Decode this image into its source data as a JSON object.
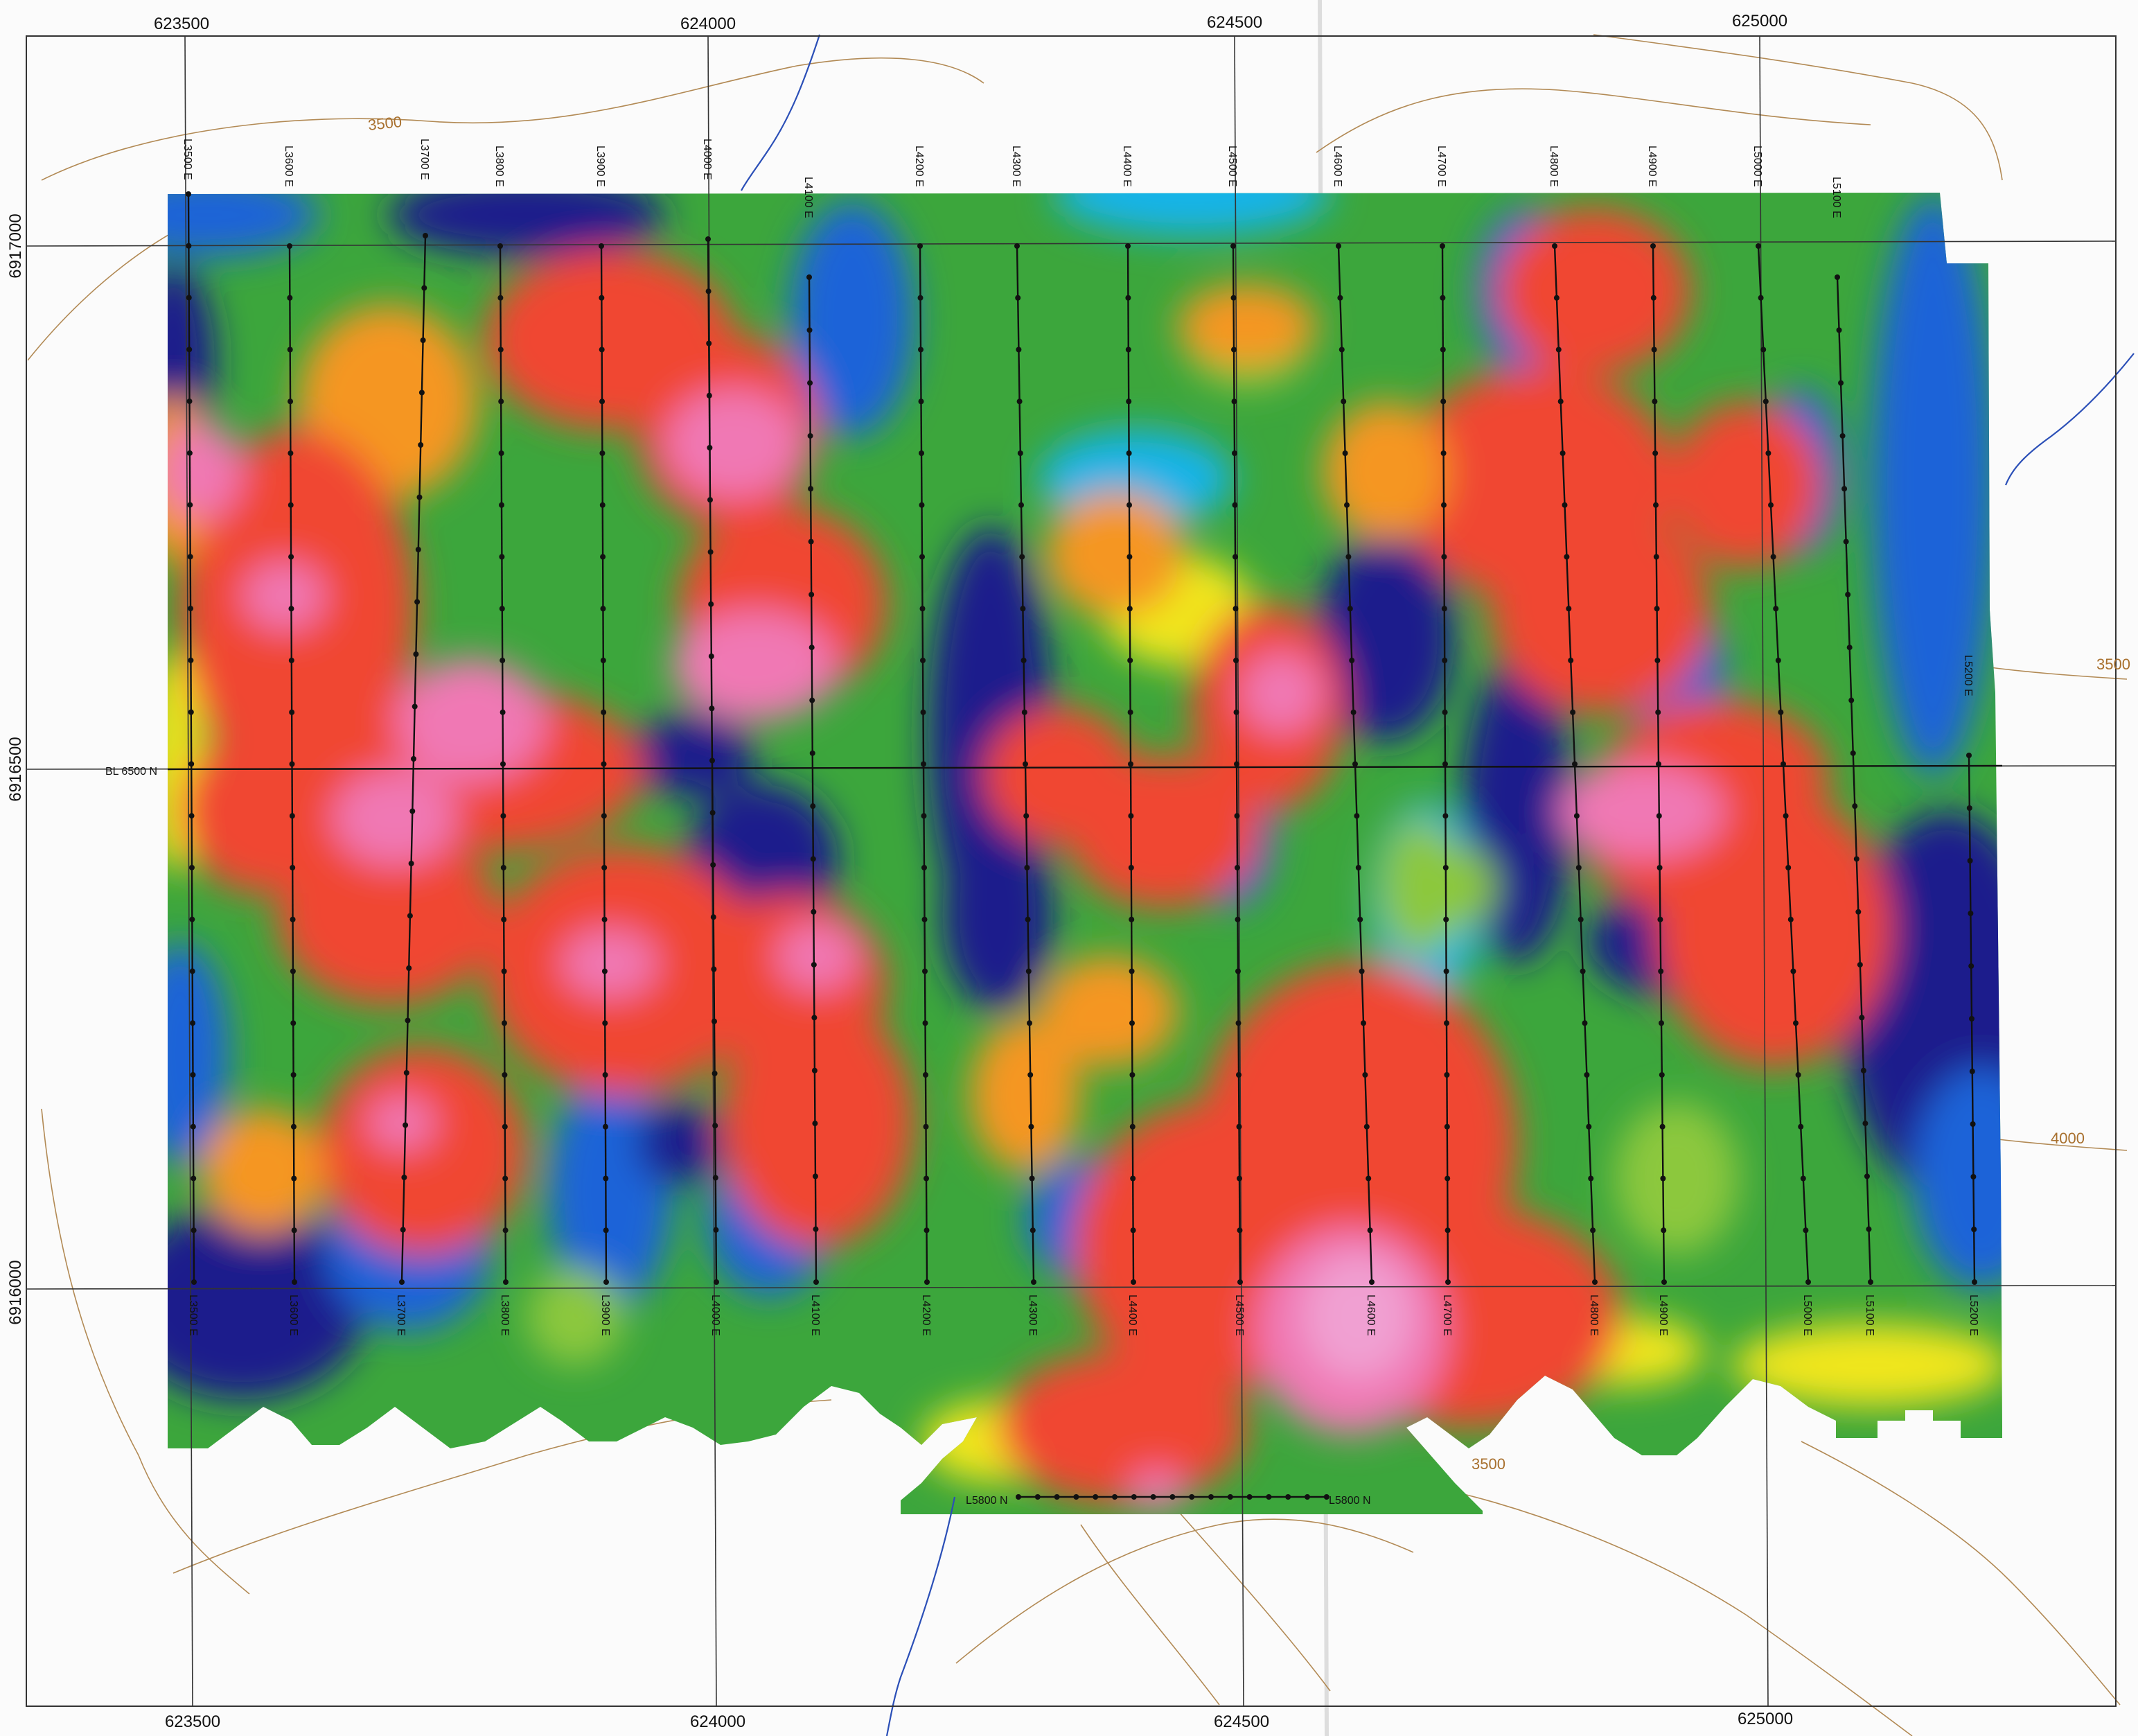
{
  "map": {
    "colors": {
      "scale": [
        "#1a1a8c",
        "#1e64d8",
        "#19b4e8",
        "#3ca63c",
        "#8cc83c",
        "#f0e61e",
        "#f59623",
        "#f04632",
        "#ee3c5a",
        "#f078b4",
        "#f0a0d2"
      ],
      "grid": "#333333",
      "contour": "#b28a55",
      "creek": "#2b4fb7"
    },
    "easting_top": [
      "623500",
      "624000",
      "624500",
      "625000"
    ],
    "easting_bottom": [
      "623500",
      "624000",
      "624500",
      "625000"
    ],
    "northing_left": [
      "6917000",
      "6916500",
      "6916000"
    ],
    "contour_labels": [
      "3500",
      "3500",
      "3500",
      "4000"
    ],
    "baseline_label": "BL 6500 N",
    "tie_line_labels": [
      "L5800 N",
      "L5800 N"
    ],
    "survey_lines_top": [
      "L3500 E",
      "L3600 E",
      "L3700 E",
      "L3800 E",
      "L3900 E",
      "L4000 E",
      "L4100 E",
      "L4200 E",
      "L4300 E",
      "L4400 E",
      "L4500 E",
      "L4600 E",
      "L4700 E",
      "L4800 E",
      "L4900 E",
      "L5000 E",
      "L5100 E",
      "L5200 E"
    ],
    "survey_lines_bottom": [
      "L3500 E",
      "L3600 E",
      "L3700 E",
      "L3800 E",
      "L3900 E",
      "L4000 E",
      "L4100 E",
      "L4200 E",
      "L4300 E",
      "L4400 E",
      "L4500 E",
      "L4600 E",
      "L4700 E",
      "L4800 E",
      "L4900 E",
      "L5000 E",
      "L5100 E",
      "L5200 E"
    ]
  }
}
